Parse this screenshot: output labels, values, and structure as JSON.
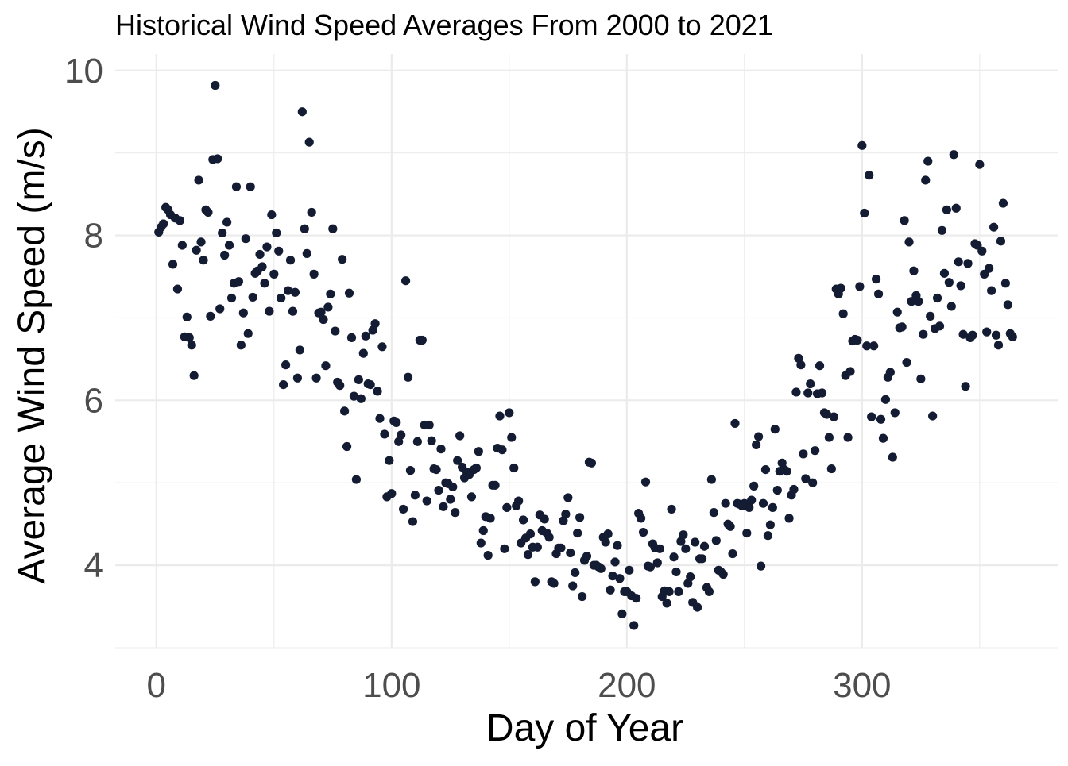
{
  "chart_data": {
    "type": "scatter",
    "title": "Historical Wind Speed Averages From 2000 to 2021",
    "xlabel": "Day of Year",
    "ylabel": "Average Wind Speed (m/s)",
    "xlim": [
      -17.5,
      383.5
    ],
    "ylim": [
      3.0,
      10.2
    ],
    "x_ticks": [
      0,
      100,
      200,
      300
    ],
    "x_tick_labels": [
      "0",
      "100",
      "200",
      "300"
    ],
    "y_ticks": [
      4,
      6,
      8,
      10
    ],
    "y_tick_labels": [
      "4",
      "6",
      "8",
      "10"
    ],
    "grid": true,
    "point_color": "#141c33",
    "points": [
      [
        1,
        8.04
      ],
      [
        2,
        8.1
      ],
      [
        3,
        8.14
      ],
      [
        4,
        8.34
      ],
      [
        5,
        8.31
      ],
      [
        6,
        8.25
      ],
      [
        7,
        7.65
      ],
      [
        8,
        8.21
      ],
      [
        9,
        7.35
      ],
      [
        10,
        8.18
      ],
      [
        11,
        7.88
      ],
      [
        12,
        6.77
      ],
      [
        13,
        7.01
      ],
      [
        14,
        6.76
      ],
      [
        15,
        6.67
      ],
      [
        16,
        6.3
      ],
      [
        17,
        7.82
      ],
      [
        18,
        8.67
      ],
      [
        19,
        7.92
      ],
      [
        20,
        7.7
      ],
      [
        21,
        8.31
      ],
      [
        22,
        8.28
      ],
      [
        23,
        7.02
      ],
      [
        24,
        8.92
      ],
      [
        25,
        9.82
      ],
      [
        26,
        8.93
      ],
      [
        27,
        7.11
      ],
      [
        28,
        8.03
      ],
      [
        29,
        7.76
      ],
      [
        30,
        8.16
      ],
      [
        31,
        7.88
      ],
      [
        32,
        7.24
      ],
      [
        33,
        7.42
      ],
      [
        34,
        8.59
      ],
      [
        35,
        7.44
      ],
      [
        36,
        6.67
      ],
      [
        37,
        7.06
      ],
      [
        38,
        7.96
      ],
      [
        39,
        6.81
      ],
      [
        40,
        8.59
      ],
      [
        41,
        7.25
      ],
      [
        42,
        7.54
      ],
      [
        43,
        7.57
      ],
      [
        44,
        7.77
      ],
      [
        45,
        7.62
      ],
      [
        46,
        7.42
      ],
      [
        47,
        7.86
      ],
      [
        48,
        7.08
      ],
      [
        49,
        8.25
      ],
      [
        50,
        7.53
      ],
      [
        51,
        8.03
      ],
      [
        52,
        7.81
      ],
      [
        53,
        7.24
      ],
      [
        54,
        6.19
      ],
      [
        55,
        6.43
      ],
      [
        56,
        7.33
      ],
      [
        57,
        7.7
      ],
      [
        58,
        7.08
      ],
      [
        59,
        7.31
      ],
      [
        60,
        6.27
      ],
      [
        61,
        6.61
      ],
      [
        62,
        9.5
      ],
      [
        63,
        8.08
      ],
      [
        64,
        7.78
      ],
      [
        65,
        9.13
      ],
      [
        66,
        8.28
      ],
      [
        67,
        7.53
      ],
      [
        68,
        6.27
      ],
      [
        69,
        7.06
      ],
      [
        70,
        7.07
      ],
      [
        71,
        6.98
      ],
      [
        72,
        6.42
      ],
      [
        73,
        7.13
      ],
      [
        74,
        7.29
      ],
      [
        75,
        8.08
      ],
      [
        76,
        6.84
      ],
      [
        77,
        6.22
      ],
      [
        78,
        6.18
      ],
      [
        79,
        7.71
      ],
      [
        80,
        5.87
      ],
      [
        81,
        5.44
      ],
      [
        82,
        7.3
      ],
      [
        83,
        6.76
      ],
      [
        84,
        6.05
      ],
      [
        85,
        5.04
      ],
      [
        86,
        6.25
      ],
      [
        87,
        6.02
      ],
      [
        88,
        6.57
      ],
      [
        89,
        6.78
      ],
      [
        90,
        6.2
      ],
      [
        91,
        6.19
      ],
      [
        92,
        6.85
      ],
      [
        93,
        6.93
      ],
      [
        94,
        6.11
      ],
      [
        95,
        5.78
      ],
      [
        96,
        6.65
      ],
      [
        97,
        5.59
      ],
      [
        98,
        4.83
      ],
      [
        99,
        5.27
      ],
      [
        100,
        4.87
      ],
      [
        101,
        5.75
      ],
      [
        102,
        5.73
      ],
      [
        103,
        5.5
      ],
      [
        104,
        5.58
      ],
      [
        105,
        4.68
      ],
      [
        106,
        7.45
      ],
      [
        107,
        6.28
      ],
      [
        108,
        5.15
      ],
      [
        109,
        4.53
      ],
      [
        110,
        4.85
      ],
      [
        111,
        5.5
      ],
      [
        112,
        6.73
      ],
      [
        113,
        6.73
      ],
      [
        114,
        5.7
      ],
      [
        115,
        4.78
      ],
      [
        116,
        5.7
      ],
      [
        117,
        5.51
      ],
      [
        118,
        5.17
      ],
      [
        119,
        5.16
      ],
      [
        120,
        4.91
      ],
      [
        121,
        5.41
      ],
      [
        122,
        4.71
      ],
      [
        123,
        5.0
      ],
      [
        124,
        4.99
      ],
      [
        125,
        4.8
      ],
      [
        126,
        4.95
      ],
      [
        127,
        4.64
      ],
      [
        128,
        5.27
      ],
      [
        129,
        5.57
      ],
      [
        130,
        5.19
      ],
      [
        131,
        5.06
      ],
      [
        132,
        5.13
      ],
      [
        133,
        5.1
      ],
      [
        134,
        4.83
      ],
      [
        135,
        5.16
      ],
      [
        136,
        5.18
      ],
      [
        137,
        5.38
      ],
      [
        138,
        4.27
      ],
      [
        139,
        4.42
      ],
      [
        140,
        4.59
      ],
      [
        141,
        4.12
      ],
      [
        142,
        4.57
      ],
      [
        143,
        4.97
      ],
      [
        144,
        4.97
      ],
      [
        145,
        5.42
      ],
      [
        146,
        5.81
      ],
      [
        147,
        5.4
      ],
      [
        148,
        4.2
      ],
      [
        149,
        4.7
      ],
      [
        150,
        5.85
      ],
      [
        151,
        5.55
      ],
      [
        152,
        5.18
      ],
      [
        153,
        4.72
      ],
      [
        154,
        4.78
      ],
      [
        155,
        4.27
      ],
      [
        156,
        4.55
      ],
      [
        157,
        4.33
      ],
      [
        158,
        4.13
      ],
      [
        159,
        4.38
      ],
      [
        160,
        4.22
      ],
      [
        161,
        3.8
      ],
      [
        162,
        4.22
      ],
      [
        163,
        4.61
      ],
      [
        164,
        4.42
      ],
      [
        165,
        4.56
      ],
      [
        166,
        4.39
      ],
      [
        167,
        4.34
      ],
      [
        168,
        3.8
      ],
      [
        169,
        3.78
      ],
      [
        170,
        4.14
      ],
      [
        171,
        4.21
      ],
      [
        172,
        4.21
      ],
      [
        173,
        4.54
      ],
      [
        174,
        4.62
      ],
      [
        175,
        4.82
      ],
      [
        176,
        4.15
      ],
      [
        177,
        3.75
      ],
      [
        178,
        3.91
      ],
      [
        179,
        4.39
      ],
      [
        180,
        4.58
      ],
      [
        181,
        3.62
      ],
      [
        182,
        4.06
      ],
      [
        183,
        4.11
      ],
      [
        184,
        5.25
      ],
      [
        185,
        5.24
      ],
      [
        186,
        4.0
      ],
      [
        187,
        4.0
      ],
      [
        188,
        3.98
      ],
      [
        189,
        3.96
      ],
      [
        190,
        4.34
      ],
      [
        191,
        4.28
      ],
      [
        192,
        4.38
      ],
      [
        193,
        3.7
      ],
      [
        194,
        3.87
      ],
      [
        195,
        4.04
      ],
      [
        196,
        4.24
      ],
      [
        197,
        3.84
      ],
      [
        198,
        3.41
      ],
      [
        199,
        3.68
      ],
      [
        200,
        3.68
      ],
      [
        201,
        3.94
      ],
      [
        202,
        3.63
      ],
      [
        203,
        3.27
      ],
      [
        204,
        3.6
      ],
      [
        205,
        4.63
      ],
      [
        206,
        4.57
      ],
      [
        207,
        4.4
      ],
      [
        208,
        5.01
      ],
      [
        209,
        3.99
      ],
      [
        210,
        3.98
      ],
      [
        211,
        4.26
      ],
      [
        212,
        4.21
      ],
      [
        213,
        4.03
      ],
      [
        214,
        4.2
      ],
      [
        215,
        3.62
      ],
      [
        216,
        3.69
      ],
      [
        217,
        3.54
      ],
      [
        218,
        3.68
      ],
      [
        219,
        4.68
      ],
      [
        220,
        4.1
      ],
      [
        221,
        3.92
      ],
      [
        222,
        3.68
      ],
      [
        223,
        4.29
      ],
      [
        224,
        4.37
      ],
      [
        225,
        4.2
      ],
      [
        226,
        3.78
      ],
      [
        227,
        3.86
      ],
      [
        228,
        3.55
      ],
      [
        229,
        4.28
      ],
      [
        230,
        3.49
      ],
      [
        231,
        4.08
      ],
      [
        232,
        4.08
      ],
      [
        233,
        4.23
      ],
      [
        234,
        3.73
      ],
      [
        235,
        3.68
      ],
      [
        236,
        5.04
      ],
      [
        237,
        4.64
      ],
      [
        238,
        4.3
      ],
      [
        239,
        3.94
      ],
      [
        240,
        3.92
      ],
      [
        241,
        3.89
      ],
      [
        242,
        4.75
      ],
      [
        243,
        4.5
      ],
      [
        244,
        4.47
      ],
      [
        245,
        4.14
      ],
      [
        246,
        5.72
      ],
      [
        247,
        4.75
      ],
      [
        248,
        4.74
      ],
      [
        249,
        4.72
      ],
      [
        250,
        4.75
      ],
      [
        251,
        4.39
      ],
      [
        252,
        4.7
      ],
      [
        253,
        4.79
      ],
      [
        254,
        4.96
      ],
      [
        255,
        5.46
      ],
      [
        256,
        5.56
      ],
      [
        257,
        3.99
      ],
      [
        258,
        4.75
      ],
      [
        259,
        5.16
      ],
      [
        260,
        4.36
      ],
      [
        261,
        4.49
      ],
      [
        262,
        4.7
      ],
      [
        263,
        5.65
      ],
      [
        264,
        4.91
      ],
      [
        265,
        5.14
      ],
      [
        266,
        5.24
      ],
      [
        267,
        5.16
      ],
      [
        268,
        5.14
      ],
      [
        269,
        4.57
      ],
      [
        270,
        4.85
      ],
      [
        271,
        4.92
      ],
      [
        272,
        6.1
      ],
      [
        273,
        6.51
      ],
      [
        274,
        6.43
      ],
      [
        275,
        5.35
      ],
      [
        276,
        5.05
      ],
      [
        277,
        6.09
      ],
      [
        278,
        6.2
      ],
      [
        279,
        5.0
      ],
      [
        280,
        5.39
      ],
      [
        281,
        6.08
      ],
      [
        282,
        6.42
      ],
      [
        283,
        6.09
      ],
      [
        284,
        5.85
      ],
      [
        285,
        5.83
      ],
      [
        286,
        5.55
      ],
      [
        287,
        5.17
      ],
      [
        288,
        5.8
      ],
      [
        289,
        7.35
      ],
      [
        290,
        7.29
      ],
      [
        291,
        7.36
      ],
      [
        292,
        7.05
      ],
      [
        293,
        6.3
      ],
      [
        294,
        5.55
      ],
      [
        295,
        6.35
      ],
      [
        296,
        6.72
      ],
      [
        297,
        6.74
      ],
      [
        298,
        6.73
      ],
      [
        299,
        7.38
      ],
      [
        300,
        9.09
      ],
      [
        301,
        8.27
      ],
      [
        302,
        6.66
      ],
      [
        303,
        8.73
      ],
      [
        304,
        5.8
      ],
      [
        305,
        6.66
      ],
      [
        306,
        7.47
      ],
      [
        307,
        7.29
      ],
      [
        308,
        5.77
      ],
      [
        309,
        5.54
      ],
      [
        310,
        6.01
      ],
      [
        311,
        6.28
      ],
      [
        312,
        6.34
      ],
      [
        313,
        5.31
      ],
      [
        314,
        5.85
      ],
      [
        315,
        7.07
      ],
      [
        316,
        6.88
      ],
      [
        317,
        6.89
      ],
      [
        318,
        8.18
      ],
      [
        319,
        6.46
      ],
      [
        320,
        7.92
      ],
      [
        321,
        7.2
      ],
      [
        322,
        7.57
      ],
      [
        323,
        7.27
      ],
      [
        324,
        7.2
      ],
      [
        325,
        6.26
      ],
      [
        326,
        6.8
      ],
      [
        327,
        8.67
      ],
      [
        328,
        8.9
      ],
      [
        329,
        7.02
      ],
      [
        330,
        5.81
      ],
      [
        331,
        6.87
      ],
      [
        332,
        7.24
      ],
      [
        333,
        6.9
      ],
      [
        334,
        8.06
      ],
      [
        335,
        7.54
      ],
      [
        336,
        8.31
      ],
      [
        337,
        7.43
      ],
      [
        338,
        7.14
      ],
      [
        339,
        8.98
      ],
      [
        340,
        8.33
      ],
      [
        341,
        7.68
      ],
      [
        342,
        7.39
      ],
      [
        343,
        6.8
      ],
      [
        344,
        6.17
      ],
      [
        345,
        7.66
      ],
      [
        346,
        6.76
      ],
      [
        347,
        6.79
      ],
      [
        348,
        7.9
      ],
      [
        349,
        7.88
      ],
      [
        350,
        8.86
      ],
      [
        351,
        7.81
      ],
      [
        352,
        7.53
      ],
      [
        353,
        6.83
      ],
      [
        354,
        7.6
      ],
      [
        355,
        7.33
      ],
      [
        356,
        8.1
      ],
      [
        357,
        6.79
      ],
      [
        358,
        6.67
      ],
      [
        359,
        7.93
      ],
      [
        360,
        8.39
      ],
      [
        361,
        7.42
      ],
      [
        362,
        7.16
      ],
      [
        363,
        6.81
      ],
      [
        364,
        6.77
      ]
    ]
  }
}
